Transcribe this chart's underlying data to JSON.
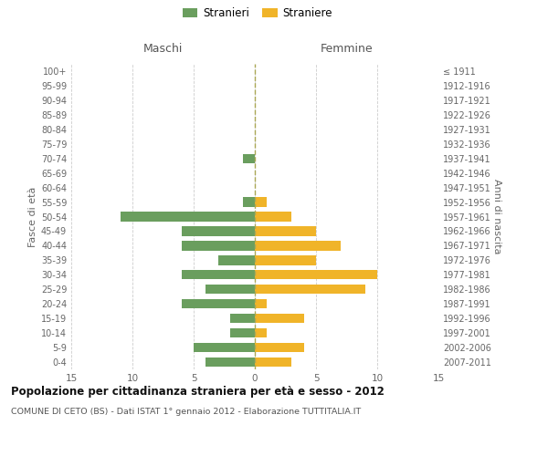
{
  "age_groups": [
    "0-4",
    "5-9",
    "10-14",
    "15-19",
    "20-24",
    "25-29",
    "30-34",
    "35-39",
    "40-44",
    "45-49",
    "50-54",
    "55-59",
    "60-64",
    "65-69",
    "70-74",
    "75-79",
    "80-84",
    "85-89",
    "90-94",
    "95-99",
    "100+"
  ],
  "birth_years": [
    "2007-2011",
    "2002-2006",
    "1997-2001",
    "1992-1996",
    "1987-1991",
    "1982-1986",
    "1977-1981",
    "1972-1976",
    "1967-1971",
    "1962-1966",
    "1957-1961",
    "1952-1956",
    "1947-1951",
    "1942-1946",
    "1937-1941",
    "1932-1936",
    "1927-1931",
    "1922-1926",
    "1917-1921",
    "1912-1916",
    "≤ 1911"
  ],
  "males": [
    4,
    5,
    2,
    2,
    6,
    4,
    6,
    3,
    6,
    6,
    11,
    1,
    0,
    0,
    1,
    0,
    0,
    0,
    0,
    0,
    0
  ],
  "females": [
    3,
    4,
    1,
    4,
    1,
    9,
    10,
    5,
    7,
    5,
    3,
    1,
    0,
    0,
    0,
    0,
    0,
    0,
    0,
    0,
    0
  ],
  "male_color": "#6a9e5e",
  "female_color": "#f0b429",
  "title": "Popolazione per cittadinanza straniera per età e sesso - 2012",
  "subtitle": "COMUNE DI CETO (BS) - Dati ISTAT 1° gennaio 2012 - Elaborazione TUTTITALIA.IT",
  "xlabel_left": "Maschi",
  "xlabel_right": "Femmine",
  "ylabel_left": "Fasce di età",
  "ylabel_right": "Anni di nascita",
  "legend_male": "Stranieri",
  "legend_female": "Straniere",
  "xlim": 15,
  "background_color": "#ffffff",
  "grid_color": "#cccccc",
  "dashed_line_color": "#aaa855"
}
